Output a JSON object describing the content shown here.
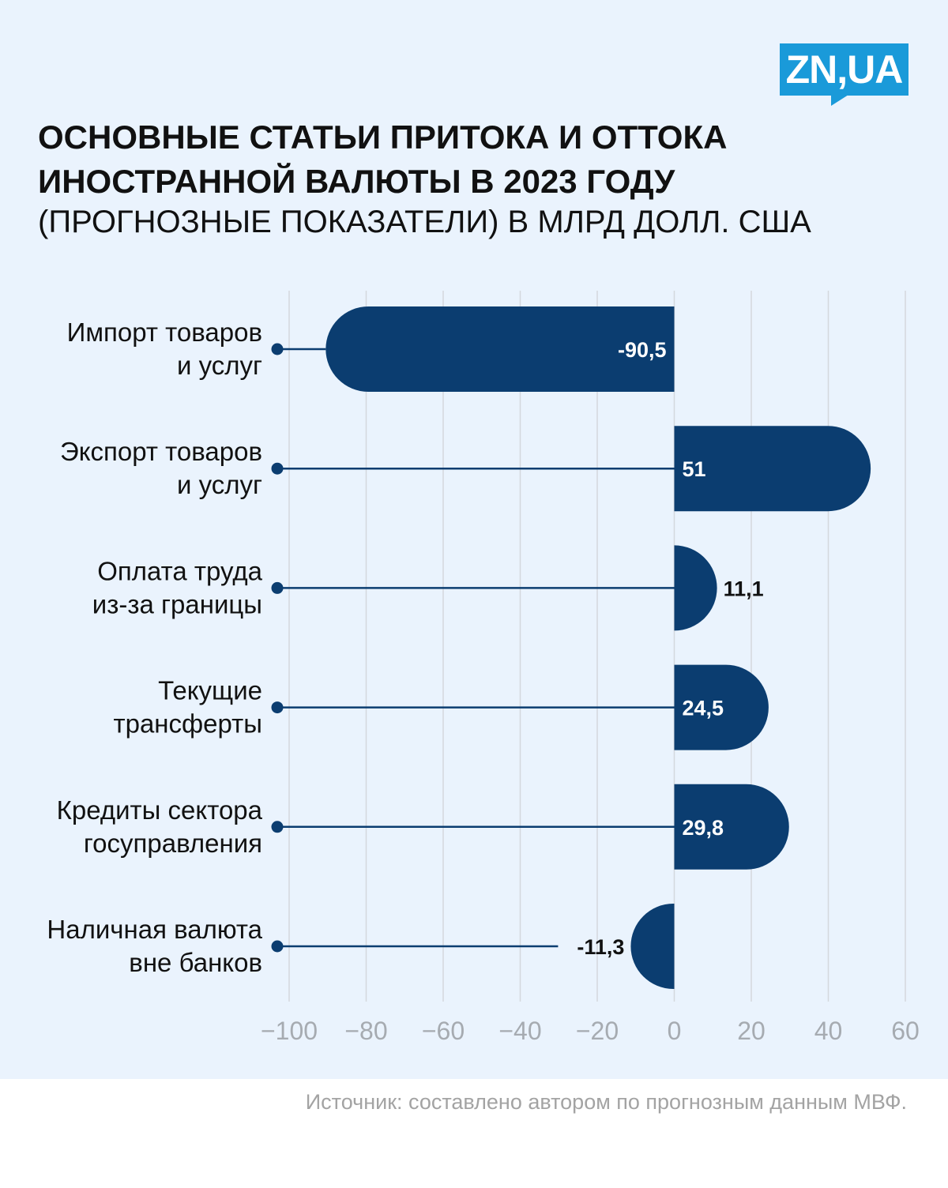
{
  "logo": {
    "text": "ZN,UA"
  },
  "title": "ОСНОВНЫЕ СТАТЬИ ПРИТОКА И ОТТОКА ИНОСТРАННОЙ ВАЛЮТЫ  В 2023 ГОДУ",
  "subtitle": "(ПРОГНОЗНЫЕ ПОКАЗАТЕЛИ) В МЛРД ДОЛЛ. США",
  "source": "Источник: составлено автором по прогнозным данным МВФ.",
  "colors": {
    "bar": "#0b3d70",
    "background": "#eaf3fd",
    "grid": "#d4d8dd",
    "tick": "#a6abb1",
    "logo": "#1a9ad9"
  },
  "chart_data": {
    "type": "bar",
    "orientation": "horizontal",
    "categories": [
      [
        "Импорт товаров",
        "и услуг"
      ],
      [
        "Экспорт товаров",
        "и услуг"
      ],
      [
        "Оплата труда",
        "из-за границы"
      ],
      [
        "Текущие",
        "трансферты"
      ],
      [
        "Кредиты сектора",
        "госуправления"
      ],
      [
        "Наличная валюта",
        "вне банков"
      ]
    ],
    "values": [
      -90.5,
      51,
      11.1,
      24.5,
      29.8,
      -11.3
    ],
    "value_labels": [
      "-90,5",
      "51",
      "11,1",
      "24,5",
      "29,8",
      "-11,3"
    ],
    "label_inside": [
      true,
      true,
      false,
      true,
      true,
      false
    ],
    "xlim": [
      -100,
      60
    ],
    "xticks": [
      -100,
      -80,
      -60,
      -40,
      -20,
      0,
      20,
      40,
      60
    ],
    "xtick_labels": [
      "−100",
      "−80",
      "−60",
      "−40",
      "−20",
      "0",
      "20",
      "40",
      "60"
    ],
    "grid": true,
    "title": "",
    "xlabel": "",
    "ylabel": ""
  }
}
